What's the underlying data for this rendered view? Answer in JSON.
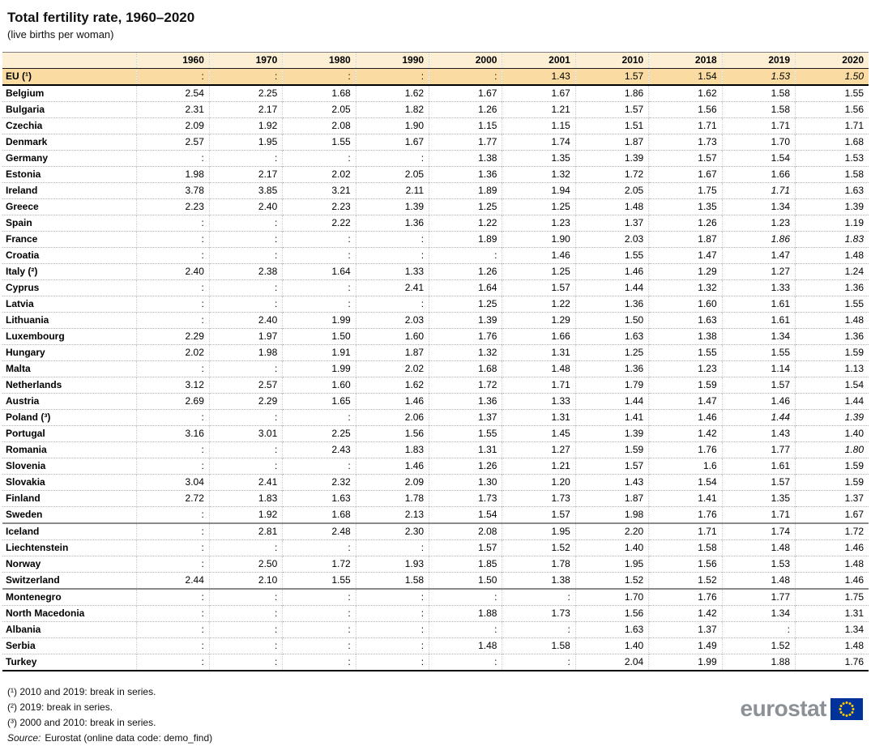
{
  "title": "Total fertility rate, 1960–2020",
  "subtitle": "(live births per woman)",
  "colors": {
    "header_bg": "#FCEFD4",
    "eu_row_bg": "#FADCA2"
  },
  "chart_data": {
    "type": "table",
    "title": "Total fertility rate, 1960–2020",
    "unit": "live births per woman",
    "columns": [
      "1960",
      "1970",
      "1980",
      "1990",
      "2000",
      "2001",
      "2010",
      "2018",
      "2019",
      "2020"
    ],
    "rows": [
      {
        "name": "EU (¹)",
        "class": "eu-row",
        "values": [
          ":",
          ":",
          ":",
          ":",
          ":",
          "1.43",
          "1.57",
          "1.54",
          "1.53",
          "1.50"
        ],
        "italics": [
          8,
          9
        ]
      },
      {
        "name": "Belgium",
        "values": [
          "2.54",
          "2.25",
          "1.68",
          "1.62",
          "1.67",
          "1.67",
          "1.86",
          "1.62",
          "1.58",
          "1.55"
        ]
      },
      {
        "name": "Bulgaria",
        "values": [
          "2.31",
          "2.17",
          "2.05",
          "1.82",
          "1.26",
          "1.21",
          "1.57",
          "1.56",
          "1.58",
          "1.56"
        ]
      },
      {
        "name": "Czechia",
        "values": [
          "2.09",
          "1.92",
          "2.08",
          "1.90",
          "1.15",
          "1.15",
          "1.51",
          "1.71",
          "1.71",
          "1.71"
        ]
      },
      {
        "name": "Denmark",
        "values": [
          "2.57",
          "1.95",
          "1.55",
          "1.67",
          "1.77",
          "1.74",
          "1.87",
          "1.73",
          "1.70",
          "1.68"
        ]
      },
      {
        "name": "Germany",
        "values": [
          ":",
          ":",
          ":",
          ":",
          "1.38",
          "1.35",
          "1.39",
          "1.57",
          "1.54",
          "1.53"
        ]
      },
      {
        "name": "Estonia",
        "values": [
          "1.98",
          "2.17",
          "2.02",
          "2.05",
          "1.36",
          "1.32",
          "1.72",
          "1.67",
          "1.66",
          "1.58"
        ]
      },
      {
        "name": "Ireland",
        "values": [
          "3.78",
          "3.85",
          "3.21",
          "2.11",
          "1.89",
          "1.94",
          "2.05",
          "1.75",
          "1.71",
          "1.63"
        ],
        "italics": [
          8
        ]
      },
      {
        "name": "Greece",
        "values": [
          "2.23",
          "2.40",
          "2.23",
          "1.39",
          "1.25",
          "1.25",
          "1.48",
          "1.35",
          "1.34",
          "1.39"
        ]
      },
      {
        "name": "Spain",
        "values": [
          ":",
          ":",
          "2.22",
          "1.36",
          "1.22",
          "1.23",
          "1.37",
          "1.26",
          "1.23",
          "1.19"
        ]
      },
      {
        "name": "France",
        "values": [
          ":",
          ":",
          ":",
          ":",
          "1.89",
          "1.90",
          "2.03",
          "1.87",
          "1.86",
          "1.83"
        ],
        "italics": [
          8,
          9
        ]
      },
      {
        "name": "Croatia",
        "values": [
          ":",
          ":",
          ":",
          ":",
          ":",
          "1.46",
          "1.55",
          "1.47",
          "1.47",
          "1.48"
        ]
      },
      {
        "name": "Italy (²)",
        "values": [
          "2.40",
          "2.38",
          "1.64",
          "1.33",
          "1.26",
          "1.25",
          "1.46",
          "1.29",
          "1.27",
          "1.24"
        ]
      },
      {
        "name": "Cyprus",
        "values": [
          ":",
          ":",
          ":",
          "2.41",
          "1.64",
          "1.57",
          "1.44",
          "1.32",
          "1.33",
          "1.36"
        ]
      },
      {
        "name": "Latvia",
        "values": [
          ":",
          ":",
          ":",
          ":",
          "1.25",
          "1.22",
          "1.36",
          "1.60",
          "1.61",
          "1.55"
        ]
      },
      {
        "name": "Lithuania",
        "values": [
          ":",
          "2.40",
          "1.99",
          "2.03",
          "1.39",
          "1.29",
          "1.50",
          "1.63",
          "1.61",
          "1.48"
        ]
      },
      {
        "name": "Luxembourg",
        "values": [
          "2.29",
          "1.97",
          "1.50",
          "1.60",
          "1.76",
          "1.66",
          "1.63",
          "1.38",
          "1.34",
          "1.36"
        ]
      },
      {
        "name": "Hungary",
        "values": [
          "2.02",
          "1.98",
          "1.91",
          "1.87",
          "1.32",
          "1.31",
          "1.25",
          "1.55",
          "1.55",
          "1.59"
        ]
      },
      {
        "name": "Malta",
        "values": [
          ":",
          ":",
          "1.99",
          "2.02",
          "1.68",
          "1.48",
          "1.36",
          "1.23",
          "1.14",
          "1.13"
        ]
      },
      {
        "name": "Netherlands",
        "values": [
          "3.12",
          "2.57",
          "1.60",
          "1.62",
          "1.72",
          "1.71",
          "1.79",
          "1.59",
          "1.57",
          "1.54"
        ]
      },
      {
        "name": "Austria",
        "values": [
          "2.69",
          "2.29",
          "1.65",
          "1.46",
          "1.36",
          "1.33",
          "1.44",
          "1.47",
          "1.46",
          "1.44"
        ]
      },
      {
        "name": "Poland (³)",
        "values": [
          ":",
          ":",
          ":",
          "2.06",
          "1.37",
          "1.31",
          "1.41",
          "1.46",
          "1.44",
          "1.39"
        ],
        "italics": [
          8,
          9
        ]
      },
      {
        "name": "Portugal",
        "values": [
          "3.16",
          "3.01",
          "2.25",
          "1.56",
          "1.55",
          "1.45",
          "1.39",
          "1.42",
          "1.43",
          "1.40"
        ]
      },
      {
        "name": "Romania",
        "values": [
          ":",
          ":",
          "2.43",
          "1.83",
          "1.31",
          "1.27",
          "1.59",
          "1.76",
          "1.77",
          "1.80"
        ],
        "italics": [
          9
        ]
      },
      {
        "name": "Slovenia",
        "values": [
          ":",
          ":",
          ":",
          "1.46",
          "1.26",
          "1.21",
          "1.57",
          "1.6",
          "1.61",
          "1.59"
        ]
      },
      {
        "name": "Slovakia",
        "values": [
          "3.04",
          "2.41",
          "2.32",
          "2.09",
          "1.30",
          "1.20",
          "1.43",
          "1.54",
          "1.57",
          "1.59"
        ]
      },
      {
        "name": "Finland",
        "values": [
          "2.72",
          "1.83",
          "1.63",
          "1.78",
          "1.73",
          "1.73",
          "1.87",
          "1.41",
          "1.35",
          "1.37"
        ]
      },
      {
        "name": "Sweden",
        "class": "group-end",
        "values": [
          ":",
          "1.92",
          "1.68",
          "2.13",
          "1.54",
          "1.57",
          "1.98",
          "1.76",
          "1.71",
          "1.67"
        ]
      },
      {
        "name": "Iceland",
        "values": [
          ":",
          "2.81",
          "2.48",
          "2.30",
          "2.08",
          "1.95",
          "2.20",
          "1.71",
          "1.74",
          "1.72"
        ]
      },
      {
        "name": "Liechtenstein",
        "values": [
          ":",
          ":",
          ":",
          ":",
          "1.57",
          "1.52",
          "1.40",
          "1.58",
          "1.48",
          "1.46"
        ]
      },
      {
        "name": "Norway",
        "values": [
          ":",
          "2.50",
          "1.72",
          "1.93",
          "1.85",
          "1.78",
          "1.95",
          "1.56",
          "1.53",
          "1.48"
        ]
      },
      {
        "name": "Switzerland",
        "class": "group-end",
        "values": [
          "2.44",
          "2.10",
          "1.55",
          "1.58",
          "1.50",
          "1.38",
          "1.52",
          "1.52",
          "1.48",
          "1.46"
        ]
      },
      {
        "name": "Montenegro",
        "values": [
          ":",
          ":",
          ":",
          ":",
          ":",
          ":",
          "1.70",
          "1.76",
          "1.77",
          "1.75"
        ]
      },
      {
        "name": "North Macedonia",
        "values": [
          ":",
          ":",
          ":",
          ":",
          "1.88",
          "1.73",
          "1.56",
          "1.42",
          "1.34",
          "1.31"
        ]
      },
      {
        "name": "Albania",
        "values": [
          ":",
          ":",
          ":",
          ":",
          ":",
          ":",
          "1.63",
          "1.37",
          ":",
          "1.34"
        ]
      },
      {
        "name": "Serbia",
        "values": [
          ":",
          ":",
          ":",
          ":",
          "1.48",
          "1.58",
          "1.40",
          "1.49",
          "1.52",
          "1.48"
        ]
      },
      {
        "name": "Turkey",
        "values": [
          ":",
          ":",
          ":",
          ":",
          ":",
          ":",
          "2.04",
          "1.99",
          "1.88",
          "1.76"
        ]
      }
    ]
  },
  "footnotes": [
    "(¹) 2010 and 2019: break in series.",
    "(²) 2019: break in series.",
    "(³) 2000 and 2010: break in series."
  ],
  "source_label": "Source:",
  "source_text": "Eurostat (online data code: demo_find)",
  "logo": {
    "text": "eurostat",
    "text_color": "#8B9197",
    "flag_color": "#003399",
    "star_color": "#FFCC00"
  }
}
